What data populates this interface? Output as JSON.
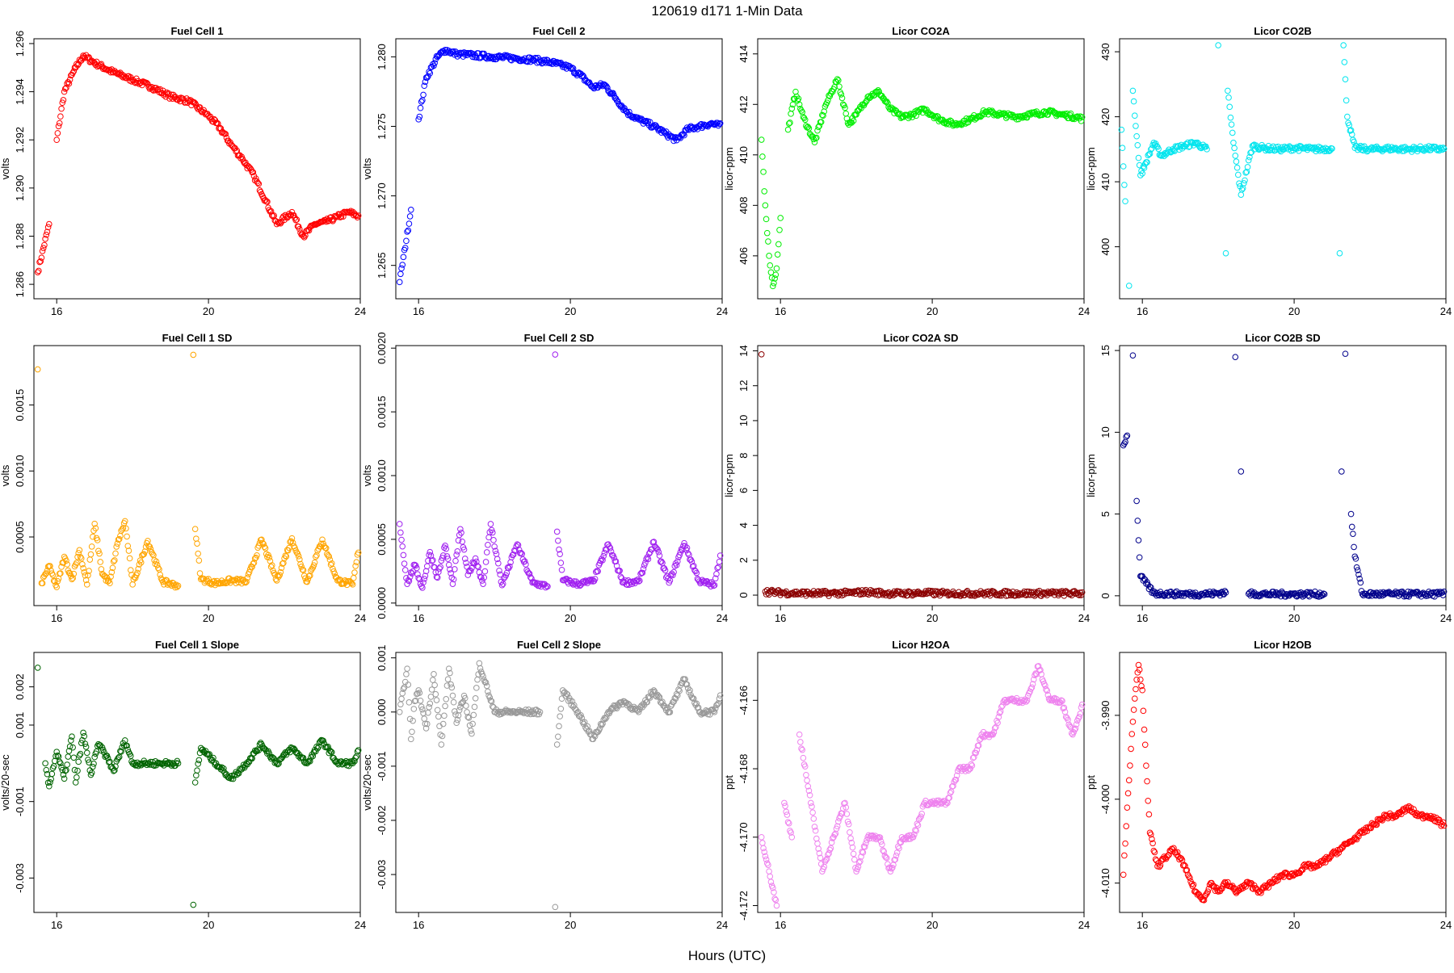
{
  "page": {
    "title": "120619   d171   1-Min Data",
    "xlabel": "Hours (UTC)"
  },
  "chart_data": [
    {
      "type": "scatter",
      "title": "Fuel Cell 1",
      "ylabel": "volts",
      "color": "#ff0000",
      "xlim": [
        15.4,
        24.0
      ],
      "ylim": [
        1.2854,
        1.2962
      ],
      "xticks": [
        "16",
        "20",
        "24"
      ],
      "yticks": [
        "1.286",
        "1.288",
        "1.290",
        "1.292",
        "1.294",
        "1.296"
      ],
      "x": [
        15.5,
        15.8,
        16.0,
        16.2,
        16.5,
        16.7,
        17.0,
        17.5,
        18.0,
        18.5,
        19.0,
        19.5,
        20.0,
        20.3,
        20.6,
        20.9,
        21.2,
        21.5,
        21.8,
        22.2,
        22.5,
        22.8,
        23.1,
        23.4,
        23.7,
        24.0
      ],
      "y": [
        1.2865,
        1.2885,
        1.292,
        1.294,
        1.295,
        1.2955,
        1.2952,
        1.2948,
        1.2945,
        1.2942,
        1.2938,
        1.2936,
        1.293,
        1.2925,
        1.2918,
        1.2912,
        1.2905,
        1.2895,
        1.2885,
        1.289,
        1.288,
        1.2885,
        1.2886,
        1.2888,
        1.289,
        1.2888
      ]
    },
    {
      "type": "scatter",
      "title": "Fuel Cell 2",
      "ylabel": "volts",
      "color": "#0000ff",
      "xlim": [
        15.4,
        24.0
      ],
      "ylim": [
        1.2626,
        1.2813
      ],
      "xticks": [
        "16",
        "20",
        "24"
      ],
      "yticks": [
        "1.265",
        "1.270",
        "1.275",
        "1.280"
      ],
      "x": [
        15.5,
        15.8,
        16.0,
        16.2,
        16.5,
        16.7,
        17.0,
        17.5,
        18.0,
        18.5,
        19.0,
        19.5,
        20.0,
        20.3,
        20.6,
        20.9,
        21.2,
        21.5,
        21.8,
        22.2,
        22.5,
        22.8,
        23.1,
        23.4,
        23.7,
        24.0
      ],
      "y": [
        1.2638,
        1.269,
        1.2755,
        1.2785,
        1.28,
        1.2805,
        1.2802,
        1.2801,
        1.28,
        1.2799,
        1.2798,
        1.2796,
        1.2792,
        1.2786,
        1.2778,
        1.278,
        1.277,
        1.276,
        1.2755,
        1.275,
        1.2745,
        1.274,
        1.2748,
        1.275,
        1.2752,
        1.275
      ]
    },
    {
      "type": "scatter",
      "title": "Licor CO2A",
      "ylabel": "licor-ppm",
      "color": "#00ee00",
      "xlim": [
        15.4,
        24.0
      ],
      "ylim": [
        404.3,
        414.6
      ],
      "xticks": [
        "16",
        "20",
        "24"
      ],
      "yticks": [
        "406",
        "408",
        "410",
        "412",
        "414"
      ],
      "x": [
        15.5,
        15.6,
        15.7,
        15.8,
        15.9,
        16.0,
        16.2,
        16.4,
        16.6,
        16.9,
        17.2,
        17.5,
        17.8,
        18.0,
        18.3,
        18.6,
        18.9,
        19.2,
        19.5,
        19.8,
        20.2,
        20.6,
        21.0,
        21.4,
        21.8,
        22.2,
        22.6,
        23.0,
        23.4,
        23.8,
        24.0
      ],
      "y": [
        410.6,
        408.0,
        406.0,
        404.8,
        405.5,
        407.5,
        411.0,
        412.5,
        411.5,
        410.5,
        412.0,
        413.0,
        411.2,
        411.6,
        412.3,
        412.5,
        411.8,
        411.5,
        411.6,
        411.8,
        411.4,
        411.2,
        411.4,
        411.7,
        411.6,
        411.5,
        411.6,
        411.7,
        411.6,
        411.5,
        411.4
      ]
    },
    {
      "type": "scatter",
      "title": "Licor CO2B",
      "ylabel": "licor-ppm",
      "color": "#00e5ee",
      "xlim": [
        15.4,
        24.0
      ],
      "ylim": [
        392.0,
        432.0
      ],
      "xticks": [
        "16",
        "20",
        "24"
      ],
      "yticks": [
        "400",
        "410",
        "420",
        "430"
      ],
      "x": [
        15.45,
        15.55,
        15.65,
        15.75,
        15.85,
        15.95,
        16.1,
        16.3,
        16.5,
        16.8,
        17.1,
        17.4,
        17.7,
        18.0,
        18.2,
        18.25,
        18.4,
        18.6,
        18.9,
        19.2,
        19.6,
        20.0,
        20.5,
        21.0,
        21.2,
        21.3,
        21.4,
        21.6,
        22.0,
        22.5,
        23.0,
        23.5,
        24.0
      ],
      "y": [
        418.0,
        407.0,
        394.0,
        424.0,
        417.0,
        411.0,
        413.0,
        416.0,
        414.0,
        415.0,
        415.5,
        416.0,
        415.0,
        431.0,
        399.0,
        424.0,
        416.0,
        408.0,
        415.5,
        415.2,
        415.0,
        415.2,
        415.0,
        415.1,
        399.0,
        431.0,
        420.0,
        415.2,
        415.0,
        415.1,
        415.0,
        415.1,
        415.0
      ]
    },
    {
      "type": "scatter",
      "title": "Fuel Cell 1 SD",
      "ylabel": "volts",
      "color": "#ffa500",
      "xlim": [
        15.4,
        24.0
      ],
      "ylim": [
        -2e-05,
        0.00195
      ],
      "xticks": [
        "16",
        "20",
        "24"
      ],
      "yticks": [
        "0.0005",
        "0.0010",
        "0.0015"
      ],
      "x": [
        15.5,
        15.6,
        15.8,
        16.0,
        16.2,
        16.4,
        16.6,
        16.8,
        17.0,
        17.2,
        17.4,
        17.6,
        17.8,
        18.0,
        18.4,
        18.8,
        19.2,
        19.6,
        19.65,
        19.8,
        20.2,
        20.6,
        21.0,
        21.4,
        21.8,
        22.2,
        22.6,
        23.0,
        23.4,
        23.8,
        24.0
      ],
      "y": [
        0.00177,
        0.00015,
        0.00028,
        0.00012,
        0.00035,
        0.00018,
        0.0004,
        0.00014,
        0.0006,
        0.00022,
        0.00015,
        0.00045,
        0.00062,
        0.00014,
        0.00047,
        0.00016,
        0.00013,
        0.00188,
        0.00056,
        0.00018,
        0.00015,
        0.00017,
        0.00016,
        0.00048,
        0.00017,
        0.00049,
        0.00016,
        0.00048,
        0.00017,
        0.00014,
        0.00048
      ]
    },
    {
      "type": "scatter",
      "title": "Fuel Cell 2 SD",
      "ylabel": "volts",
      "color": "#a020f0",
      "xlim": [
        15.4,
        24.0
      ],
      "ylim": [
        -2e-05,
        0.00202
      ],
      "xticks": [
        "16",
        "20",
        "24"
      ],
      "yticks": [
        "0.0000",
        "0.0005",
        "0.0010",
        "0.0015",
        "0.0020"
      ],
      "x": [
        15.5,
        15.7,
        15.9,
        16.1,
        16.3,
        16.5,
        16.7,
        16.9,
        17.1,
        17.3,
        17.5,
        17.7,
        17.9,
        18.2,
        18.6,
        19.0,
        19.4,
        19.6,
        19.65,
        19.8,
        20.2,
        20.6,
        21.0,
        21.4,
        21.8,
        22.2,
        22.6,
        23.0,
        23.4,
        23.8,
        24.0
      ],
      "y": [
        0.00062,
        0.00015,
        0.0003,
        0.00012,
        0.0004,
        0.0002,
        0.00045,
        0.00015,
        0.00058,
        0.00022,
        0.00035,
        0.00015,
        0.00062,
        0.00014,
        0.00046,
        0.00016,
        0.00013,
        0.00195,
        0.00056,
        0.00018,
        0.00015,
        0.00017,
        0.00046,
        0.00016,
        0.00017,
        0.00048,
        0.00016,
        0.00047,
        0.00017,
        0.00014,
        0.00046
      ]
    },
    {
      "type": "scatter",
      "title": "Licor CO2A SD",
      "ylabel": "licor-ppm",
      "color": "#8b0000",
      "xlim": [
        15.4,
        24.0
      ],
      "ylim": [
        -0.6,
        14.3
      ],
      "xticks": [
        "16",
        "20",
        "24"
      ],
      "yticks": [
        "0",
        "2",
        "4",
        "6",
        "8",
        "10",
        "12",
        "14"
      ],
      "x": [
        15.5,
        15.6,
        15.9,
        16.3,
        16.8,
        17.3,
        17.8,
        18.3,
        18.8,
        19.3,
        19.8,
        20.3,
        20.8,
        21.3,
        21.8,
        22.3,
        22.8,
        23.3,
        23.8,
        24.0
      ],
      "y": [
        13.8,
        0.2,
        0.15,
        0.12,
        0.1,
        0.1,
        0.12,
        0.18,
        0.1,
        0.1,
        0.12,
        0.1,
        0.1,
        0.1,
        0.1,
        0.1,
        0.1,
        0.1,
        0.1,
        0.1
      ]
    },
    {
      "type": "scatter",
      "title": "Licor CO2B SD",
      "ylabel": "licor-ppm",
      "color": "#00008b",
      "xlim": [
        15.4,
        24.0
      ],
      "ylim": [
        -0.6,
        15.3
      ],
      "xticks": [
        "16",
        "20",
        "24"
      ],
      "yticks": [
        "0",
        "5",
        "10",
        "15"
      ],
      "x": [
        15.5,
        15.6,
        15.75,
        15.85,
        15.95,
        16.3,
        16.8,
        17.3,
        17.8,
        18.2,
        18.45,
        18.6,
        18.8,
        19.3,
        19.8,
        20.3,
        20.8,
        21.25,
        21.35,
        21.5,
        21.6,
        21.8,
        22.3,
        22.8,
        23.3,
        23.8,
        24.0
      ],
      "y": [
        9.2,
        9.8,
        14.7,
        5.8,
        1.2,
        0.15,
        0.12,
        0.1,
        0.12,
        0.2,
        14.6,
        7.6,
        0.12,
        0.1,
        0.1,
        0.1,
        0.1,
        7.6,
        14.8,
        5.0,
        2.4,
        0.1,
        0.1,
        0.1,
        0.1,
        0.1,
        0.1
      ]
    },
    {
      "type": "scatter",
      "title": "Fuel Cell 1 Slope",
      "ylabel": "volts/20-sec",
      "color": "#006400",
      "xlim": [
        15.4,
        24.0
      ],
      "ylim": [
        -0.0039,
        0.0029
      ],
      "xticks": [
        "16",
        "20",
        "24"
      ],
      "yticks": [
        "-0.003",
        "-0.001",
        "0.001",
        "0.002"
      ],
      "x": [
        15.5,
        15.7,
        15.8,
        16.0,
        16.2,
        16.4,
        16.5,
        16.7,
        16.9,
        17.1,
        17.3,
        17.5,
        17.8,
        18.0,
        18.4,
        18.8,
        19.2,
        19.6,
        19.65,
        19.8,
        20.2,
        20.6,
        21.0,
        21.4,
        21.8,
        22.2,
        22.6,
        23.0,
        23.4,
        23.8,
        24.0
      ],
      "y": [
        0.0025,
        0.0,
        -0.0006,
        0.0003,
        -0.0004,
        0.0007,
        -0.0005,
        0.0008,
        -0.0003,
        0.0005,
        0.0002,
        -0.0002,
        0.0006,
        0.0,
        0.0,
        0.0,
        0.0,
        -0.0037,
        -0.0005,
        0.0004,
        0.0,
        -0.0004,
        0.0,
        0.0005,
        0.0,
        0.0004,
        0.0,
        0.0006,
        0.0,
        0.0,
        0.0004
      ]
    },
    {
      "type": "scatter",
      "title": "Fuel Cell 2 Slope",
      "ylabel": "volts/20-sec",
      "color": "#999999",
      "xlim": [
        15.4,
        24.0
      ],
      "ylim": [
        -0.0037,
        0.0011
      ],
      "xticks": [
        "16",
        "20",
        "24"
      ],
      "yticks": [
        "-0.003",
        "-0.002",
        "-0.001",
        "0.000",
        "0.001"
      ],
      "x": [
        15.5,
        15.7,
        15.8,
        15.9,
        16.0,
        16.2,
        16.4,
        16.6,
        16.8,
        17.0,
        17.2,
        17.4,
        17.6,
        18.0,
        18.4,
        18.8,
        19.2,
        19.6,
        19.65,
        19.8,
        20.2,
        20.6,
        21.0,
        21.4,
        21.8,
        22.2,
        22.6,
        23.0,
        23.4,
        23.8,
        24.0
      ],
      "y": [
        0.0,
        0.0008,
        -0.0005,
        0.0002,
        0.0004,
        -0.0003,
        0.0007,
        -0.0006,
        0.0008,
        -0.0002,
        0.0003,
        -0.0004,
        0.0009,
        0.0,
        0.0,
        0.0,
        0.0,
        -0.0036,
        -0.0006,
        0.0004,
        0.0,
        -0.0005,
        0.0,
        0.0002,
        0.0,
        0.0004,
        0.0,
        0.0006,
        0.0,
        0.0,
        0.0004
      ]
    },
    {
      "type": "scatter",
      "title": "Licor H2OA",
      "ylabel": "ppt",
      "color": "#ee82ee",
      "xlim": [
        15.4,
        24.0
      ],
      "ylim": [
        -4.1722,
        -4.1646
      ],
      "xticks": [
        "16",
        "20",
        "24"
      ],
      "yticks": [
        "-4.172",
        "-4.170",
        "-4.168",
        "-4.166"
      ],
      "x": [
        15.5,
        15.7,
        15.9,
        16.1,
        16.3,
        16.5,
        16.8,
        17.1,
        17.4,
        17.7,
        18.0,
        18.3,
        18.6,
        18.9,
        19.2,
        19.5,
        19.8,
        20.1,
        20.4,
        20.7,
        21.0,
        21.3,
        21.6,
        21.9,
        22.2,
        22.5,
        22.8,
        23.1,
        23.4,
        23.7,
        24.0
      ],
      "y": [
        -4.17,
        -4.171,
        -4.172,
        -4.169,
        -4.17,
        -4.167,
        -4.169,
        -4.171,
        -4.17,
        -4.169,
        -4.171,
        -4.17,
        -4.17,
        -4.171,
        -4.17,
        -4.17,
        -4.169,
        -4.169,
        -4.169,
        -4.168,
        -4.168,
        -4.167,
        -4.167,
        -4.166,
        -4.166,
        -4.166,
        -4.165,
        -4.166,
        -4.166,
        -4.167,
        -4.166
      ]
    },
    {
      "type": "scatter",
      "title": "Licor H2OB",
      "ylabel": "ppt",
      "color": "#ff0000",
      "xlim": [
        15.4,
        24.0
      ],
      "ylim": [
        -4.0135,
        -3.9825
      ],
      "xticks": [
        "16",
        "20",
        "24"
      ],
      "yticks": [
        "-4.010",
        "-4.000",
        "-3.990"
      ],
      "x": [
        15.5,
        15.6,
        15.7,
        15.8,
        15.9,
        16.0,
        16.1,
        16.2,
        16.4,
        16.6,
        16.8,
        17.0,
        17.2,
        17.4,
        17.6,
        17.8,
        18.0,
        18.2,
        18.5,
        18.8,
        19.1,
        19.4,
        19.7,
        20.0,
        20.3,
        20.6,
        20.9,
        21.2,
        21.5,
        21.8,
        22.1,
        22.4,
        22.7,
        23.0,
        23.3,
        23.6,
        23.9,
        24.0
      ],
      "y": [
        -4.009,
        -4.001,
        -3.994,
        -3.988,
        -3.984,
        -3.987,
        -3.996,
        -4.004,
        -4.008,
        -4.007,
        -4.006,
        -4.007,
        -4.009,
        -4.011,
        -4.012,
        -4.01,
        -4.011,
        -4.01,
        -4.011,
        -4.01,
        -4.011,
        -4.01,
        -4.009,
        -4.009,
        -4.008,
        -4.008,
        -4.007,
        -4.006,
        -4.005,
        -4.004,
        -4.003,
        -4.002,
        -4.002,
        -4.001,
        -4.002,
        -4.002,
        -4.003,
        -4.003
      ]
    }
  ]
}
